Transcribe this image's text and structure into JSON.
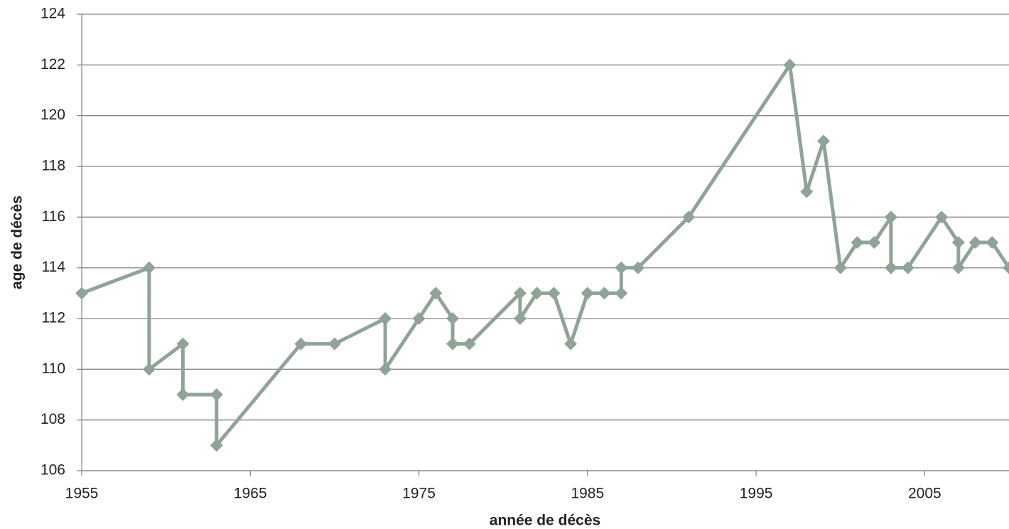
{
  "chart_data": {
    "type": "line",
    "x_label": "année de décès",
    "y_label": "age de décès",
    "x": [
      1955,
      1959,
      1959,
      1961,
      1961,
      1963,
      1963,
      1968,
      1970,
      1973,
      1973,
      1975,
      1976,
      1977,
      1977,
      1978,
      1981,
      1981,
      1982,
      1983,
      1984,
      1985,
      1986,
      1987,
      1987,
      1988,
      1991,
      1997,
      1998,
      1999,
      2000,
      2001,
      2002,
      2003,
      2003,
      2004,
      2006,
      2007,
      2007,
      2008,
      2009,
      2010
    ],
    "values": [
      113,
      114,
      110,
      111,
      109,
      109,
      107,
      111,
      111,
      112,
      110,
      112,
      113,
      112,
      111,
      111,
      113,
      112,
      113,
      113,
      111,
      113,
      113,
      113,
      114,
      114,
      116,
      122,
      117,
      119,
      114,
      115,
      115,
      116,
      114,
      114,
      116,
      115,
      114,
      115,
      115,
      114
    ],
    "color": "#8fa396",
    "xlim": [
      1955,
      2010
    ],
    "xticks": [
      1955,
      1965,
      1975,
      1985,
      1995,
      2005
    ],
    "ylim": [
      106,
      124
    ],
    "yticks": [
      106,
      108,
      110,
      112,
      114,
      116,
      118,
      120,
      122,
      124
    ],
    "grid": true
  }
}
